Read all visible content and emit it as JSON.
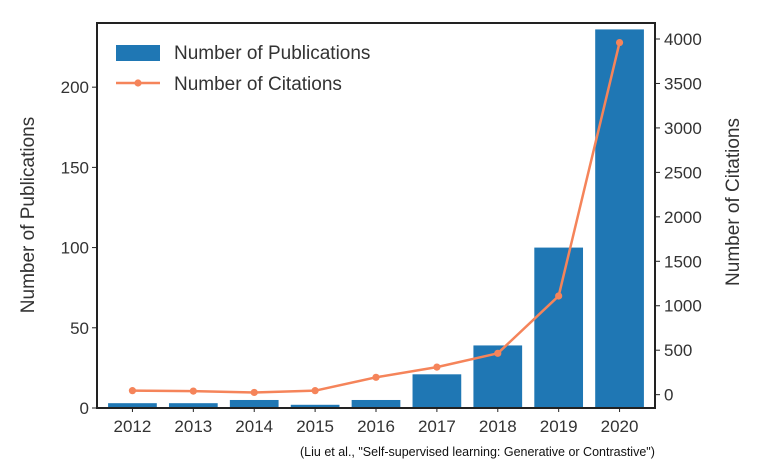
{
  "chart_data": {
    "type": "bar",
    "title": "",
    "xlabel": "",
    "ylabel": "Number of Publications",
    "y2label": "Number of Citations",
    "categories": [
      "2012",
      "2013",
      "2014",
      "2015",
      "2016",
      "2017",
      "2018",
      "2019",
      "2020"
    ],
    "ylim": [
      0,
      240
    ],
    "y2lim": [
      -150,
      4180
    ],
    "yticks": [
      0,
      50,
      100,
      150,
      200
    ],
    "y2ticks": [
      0,
      500,
      1000,
      1500,
      2000,
      2500,
      3000,
      3500,
      4000
    ],
    "grid": false,
    "legend_position": "top-left",
    "series": [
      {
        "name": "Number of Publications",
        "type": "bar",
        "axis": "left",
        "color": "#1f77b4",
        "values": [
          3,
          3,
          5,
          2,
          5,
          21,
          39,
          100,
          236
        ]
      },
      {
        "name": "Number of Citations",
        "type": "line",
        "axis": "right",
        "color": "#f5845a",
        "values": [
          45,
          40,
          25,
          45,
          195,
          310,
          465,
          1110,
          3960
        ]
      }
    ]
  },
  "caption": "(Liu et al., \"Self-supervised learning: Generative or Contrastive\")"
}
